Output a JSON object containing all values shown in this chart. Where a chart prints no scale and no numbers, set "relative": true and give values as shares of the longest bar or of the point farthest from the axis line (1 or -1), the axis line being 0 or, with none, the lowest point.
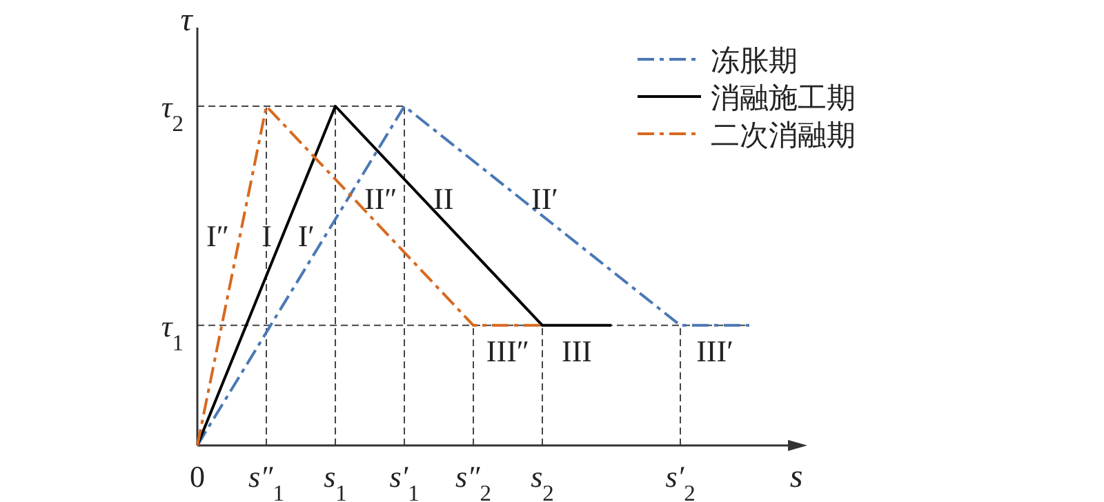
{
  "chart_data": {
    "type": "line",
    "xlabel": "s",
    "ylabel": "τ",
    "relative": true,
    "categories": [
      "0",
      "s″$_{1}$",
      "s$_{1}$",
      "s′$_{1}$",
      "s″$_{2}$",
      "s$_{2}$",
      null,
      "s′$_{2}$",
      null
    ],
    "grid": "x",
    "legend": "top right",
    "series": [
      {
        "name": "冻胀期",
        "color": "#4a78b5",
        "line_style": "dashdot",
        "values": [
          0,
          null,
          null,
          1,
          null,
          null,
          null,
          0.354,
          0.354
        ]
      },
      {
        "name": "消融施工期",
        "color": "#000000",
        "line_style": "solid",
        "values": [
          0,
          null,
          1,
          null,
          null,
          0.354,
          0.354,
          null,
          null
        ]
      },
      {
        "name": "二次消融期",
        "color": "#d8691f",
        "line_style": "dashdot",
        "values": [
          0,
          1,
          null,
          null,
          0.354,
          0.354,
          null,
          null,
          null
        ]
      }
    ],
    "ref_lines": [
      {
        "axis": "y",
        "value": 0.354,
        "label": "τ$_{1}$",
        "color": "#444444",
        "line_style": "dashed"
      },
      {
        "axis": "y",
        "value": 1,
        "label": "τ$_{2}$",
        "color": "#444444",
        "line_style": "dashed"
      }
    ],
    "annotations": [
      "I″",
      "I",
      "I′",
      "II″",
      "II",
      "II′",
      "III″",
      "III",
      "III′"
    ]
  }
}
